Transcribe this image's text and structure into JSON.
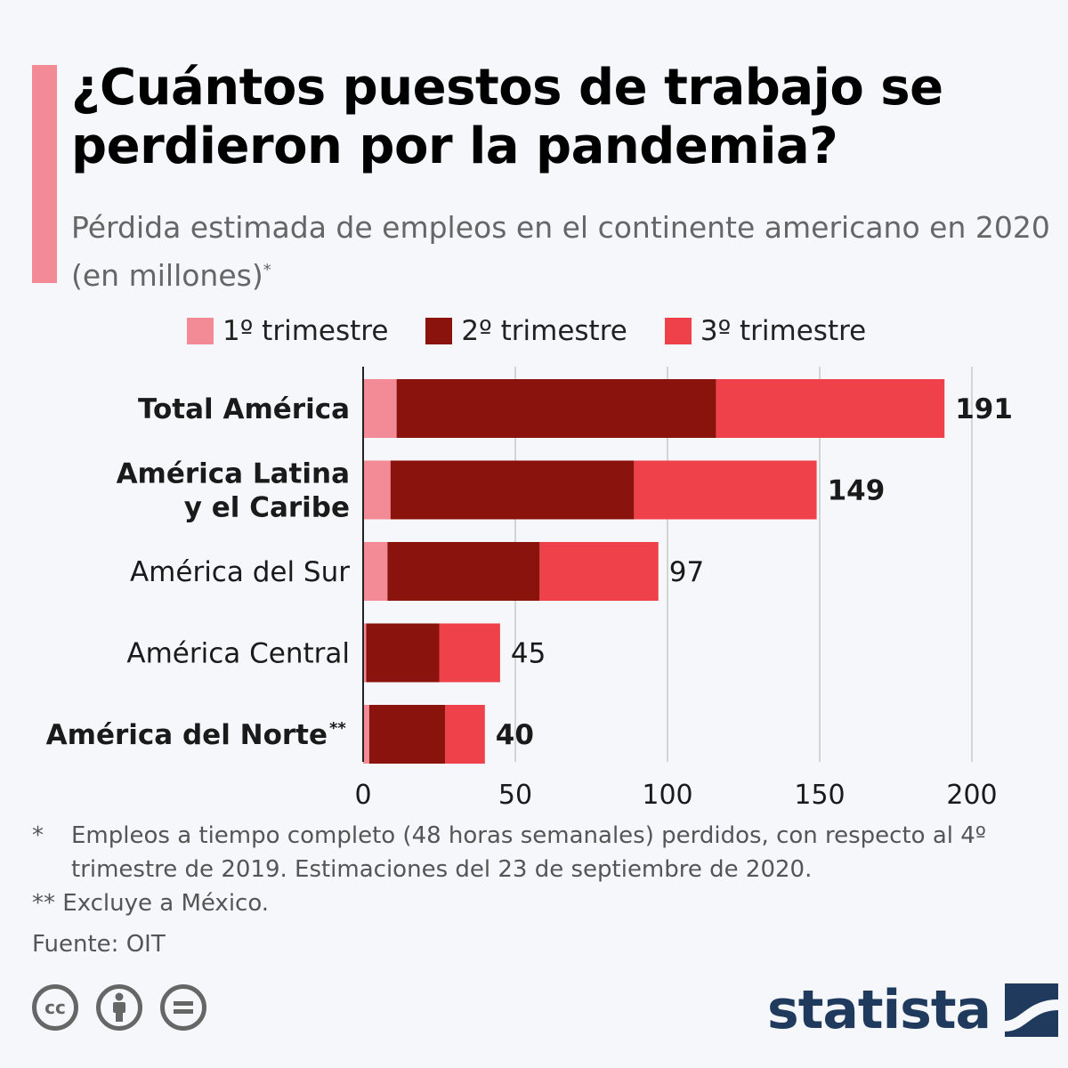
{
  "header": {
    "title": "¿Cuántos puestos de trabajo se perdieron por la pandemia?",
    "subtitle": "Pérdida estimada de empleos en el continente americano en 2020 (en millones)",
    "subtitle_mark": "*"
  },
  "colors": {
    "accent": "#f28b95",
    "q1": "#f28b95",
    "q2": "#8b130e",
    "q3": "#ef4149",
    "grid": "#c8c8c8",
    "axis": "#222222"
  },
  "chart_data": {
    "type": "bar",
    "orientation": "horizontal",
    "stacked": true,
    "categories": [
      {
        "lines": [
          "Total América"
        ],
        "bold": true,
        "mark": ""
      },
      {
        "lines": [
          "América Latina",
          "y el Caribe"
        ],
        "bold": true,
        "mark": ""
      },
      {
        "lines": [
          "América del Sur"
        ],
        "bold": false,
        "mark": ""
      },
      {
        "lines": [
          "América Central"
        ],
        "bold": false,
        "mark": ""
      },
      {
        "lines": [
          "América del Norte"
        ],
        "bold": true,
        "mark": "**"
      }
    ],
    "series": [
      {
        "name": "1º trimestre",
        "values": [
          11,
          9,
          8,
          1,
          2
        ]
      },
      {
        "name": "2º trimestre",
        "values": [
          105,
          80,
          50,
          24,
          25
        ]
      },
      {
        "name": "3º trimestre",
        "values": [
          75,
          60,
          39,
          20,
          13
        ]
      }
    ],
    "totals": [
      191,
      149,
      97,
      45,
      40
    ],
    "total_labels": [
      "191",
      "149",
      "97",
      "45",
      "40"
    ],
    "xlim": [
      0,
      200
    ],
    "xticks": [
      0,
      50,
      100,
      150,
      200
    ],
    "grid": true,
    "legend": "top"
  },
  "footnotes": [
    {
      "mark": "*",
      "text": "Empleos a tiempo completo (48 horas semanales) perdidos, con respecto al 4º trimestre de 2019. Estimaciones del 23 de septiembre de 2020."
    },
    {
      "mark": "**",
      "text": "Excluye a México."
    }
  ],
  "source": "Fuente: OIT",
  "license_icons": [
    "cc-icon",
    "by-icon",
    "nd-icon"
  ],
  "brand": "statista"
}
